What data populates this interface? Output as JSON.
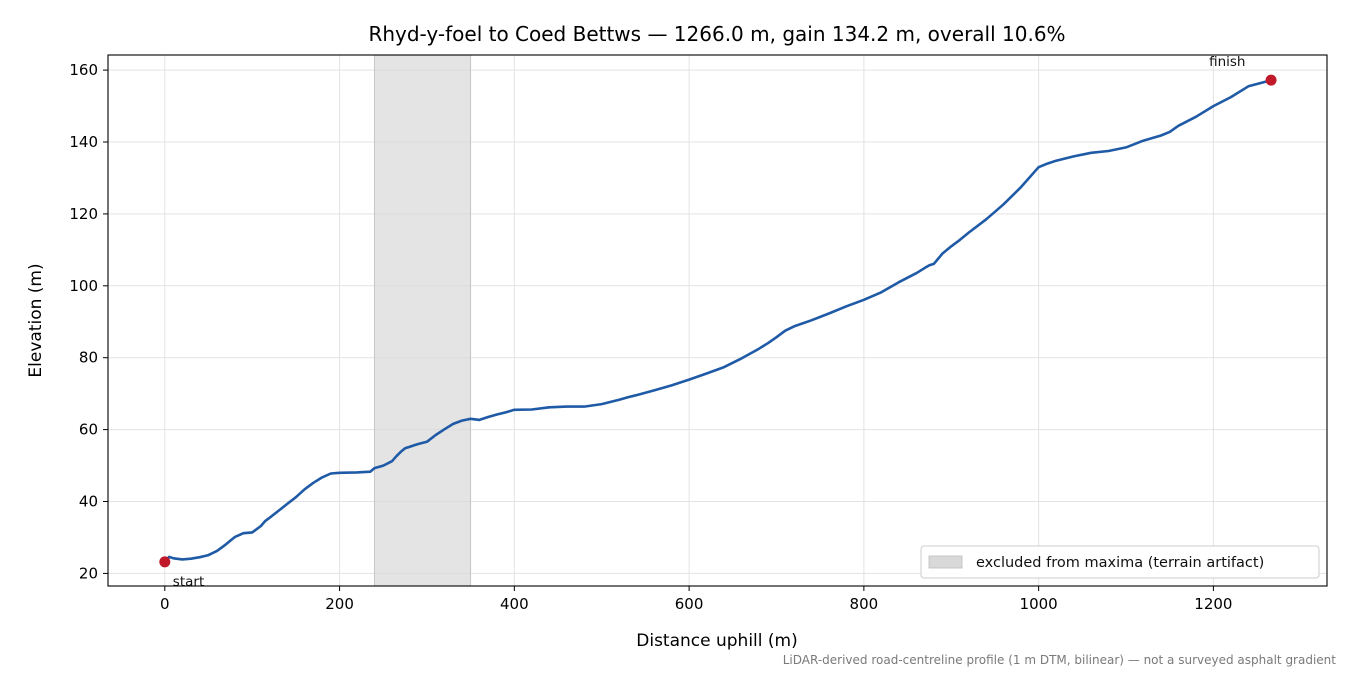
{
  "chart_data": {
    "type": "line",
    "title": "Rhyd-y-foel to Coed Bettws — 1266.0 m, gain 134.2 m, overall 10.6%",
    "xlabel": "Distance uphill (m)",
    "ylabel": "Elevation (m)",
    "xlim": [
      -65,
      1330
    ],
    "ylim": [
      16.5,
      164.2
    ],
    "xticks": [
      0,
      200,
      400,
      600,
      800,
      1000,
      1200
    ],
    "yticks": [
      20,
      40,
      60,
      80,
      100,
      120,
      140,
      160
    ],
    "grid": true,
    "line_color": "#1f5aa6",
    "marker_color": "#c0192a",
    "excluded_color": "#d9d9d9",
    "series": [
      {
        "x": [
          0,
          5,
          10,
          20,
          30,
          40,
          50,
          60,
          70,
          80,
          90,
          100,
          110,
          115,
          120,
          130,
          140,
          150,
          160,
          170,
          180,
          190,
          200,
          220,
          235,
          240,
          250,
          260,
          265,
          270,
          275,
          280,
          285,
          290,
          300,
          310,
          320,
          330,
          340,
          350,
          360,
          370,
          380,
          390,
          400,
          420,
          440,
          460,
          480,
          500,
          520,
          530,
          540,
          560,
          580,
          600,
          620,
          640,
          660,
          680,
          690,
          700,
          710,
          720,
          740,
          760,
          780,
          800,
          820,
          840,
          860,
          870,
          875,
          880,
          890,
          900,
          910,
          920,
          940,
          960,
          980,
          1000,
          1010,
          1020,
          1040,
          1060,
          1080,
          1100,
          1120,
          1140,
          1150,
          1160,
          1180,
          1200,
          1220,
          1240,
          1266
        ],
        "y": [
          23.2,
          24.6,
          24.2,
          23.9,
          24.1,
          24.5,
          25.1,
          26.3,
          28.1,
          30.1,
          31.2,
          31.4,
          33.2,
          34.6,
          35.5,
          37.4,
          39.3,
          41.2,
          43.4,
          45.2,
          46.7,
          47.8,
          48.0,
          48.1,
          48.3,
          49.3,
          50.0,
          51.2,
          52.6,
          53.8,
          54.8,
          55.2,
          55.6,
          56.0,
          56.6,
          58.5,
          60.1,
          61.6,
          62.5,
          63.0,
          62.7,
          63.5,
          64.2,
          64.8,
          65.5,
          65.6,
          66.2,
          66.4,
          66.4,
          67.1,
          68.3,
          69.0,
          69.6,
          70.9,
          72.3,
          73.9,
          75.6,
          77.4,
          79.8,
          82.5,
          84.0,
          85.7,
          87.5,
          88.7,
          90.4,
          92.3,
          94.3,
          96.1,
          98.2,
          101.0,
          103.5,
          105.0,
          105.7,
          106.1,
          109.0,
          111.0,
          112.8,
          114.8,
          118.5,
          122.7,
          127.5,
          133.0,
          134.0,
          134.8,
          136.0,
          137.0,
          137.5,
          138.5,
          140.4,
          141.8,
          142.8,
          144.5,
          147.0,
          150.0,
          152.5,
          155.5,
          157.2
        ]
      }
    ],
    "points": [
      {
        "x": 0,
        "y": 23.2,
        "label": "start"
      },
      {
        "x": 1266,
        "y": 157.2,
        "label": "finish"
      }
    ],
    "excluded_range": [
      240,
      350
    ],
    "legend": {
      "entries": [
        "excluded from maxima (terrain artifact)"
      ],
      "placement": "lower-right"
    },
    "footnote": "LiDAR-derived road-centreline profile (1 m DTM, bilinear) — not a surveyed asphalt gradient"
  }
}
